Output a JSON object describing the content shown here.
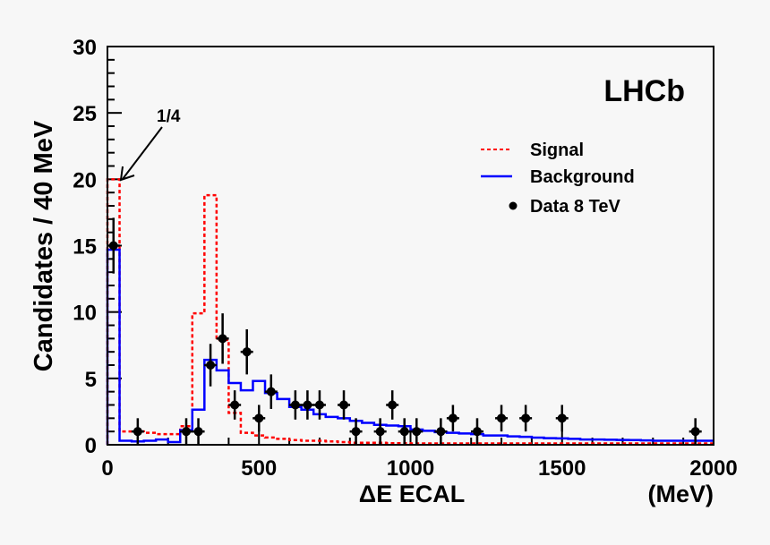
{
  "chart_data": {
    "type": "bar",
    "title": "",
    "xlabel": "ΔE ECAL",
    "xunit": "(MeV)",
    "ylabel": "Candidates / 40 MeV",
    "xlim": [
      0,
      2000
    ],
    "ylim": [
      0,
      30
    ],
    "xticks": [
      "0",
      "500",
      "1000",
      "1500",
      "2000"
    ],
    "yticks": [
      "0",
      "5",
      "10",
      "15",
      "20",
      "25",
      "30"
    ],
    "bin_width": 40,
    "experiment_label": "LHCb",
    "annotation": {
      "text": "1/4",
      "points_to_x": 20,
      "points_to_y": 20
    },
    "legend": {
      "placement": "top-right",
      "entries": [
        "Signal",
        "Background",
        "Data 8 TeV"
      ]
    },
    "colors": {
      "signal": "#ff0000",
      "background": "#0000ff",
      "data": "#000000"
    },
    "series": [
      {
        "name": "Signal",
        "style": "dashed-step",
        "values": [
          20,
          1.0,
          1.0,
          0.9,
          0.8,
          0.8,
          1.4,
          9.9,
          18.8,
          7.9,
          2.4,
          0.9,
          0.7,
          0.55,
          0.45,
          0.35,
          0.3,
          0.3,
          0.25,
          0.2,
          0.15,
          0.15,
          0.15,
          0.12,
          0.12,
          0.1,
          0.1,
          0.1,
          0.1,
          0.1,
          0.1,
          0.1,
          0.1,
          0.1,
          0.1,
          0.1,
          0.1,
          0.1,
          0.1,
          0.1,
          0.1,
          0.1,
          0.1,
          0.1,
          0.1,
          0.1,
          0.1,
          0.1,
          0.1,
          0.1
        ]
      },
      {
        "name": "Background",
        "style": "solid-step",
        "values": [
          14.7,
          0.3,
          0.25,
          0.3,
          0.4,
          0.2,
          1.1,
          2.65,
          6.4,
          5.6,
          4.65,
          4.1,
          4.8,
          3.9,
          3.45,
          2.85,
          2.65,
          2.3,
          2.1,
          2.0,
          1.8,
          1.65,
          1.5,
          1.45,
          1.4,
          1.15,
          1.05,
          0.95,
          0.9,
          0.85,
          0.8,
          0.7,
          0.7,
          0.63,
          0.6,
          0.54,
          0.5,
          0.48,
          0.45,
          0.4,
          0.4,
          0.38,
          0.36,
          0.35,
          0.33,
          0.3,
          0.3,
          0.3,
          0.3,
          0.3
        ]
      },
      {
        "name": "Data 8 TeV",
        "style": "points",
        "x": [
          20,
          100,
          260,
          300,
          340,
          380,
          420,
          460,
          500,
          540,
          620,
          660,
          700,
          780,
          820,
          900,
          940,
          980,
          1020,
          1100,
          1140,
          1220,
          1300,
          1380,
          1500,
          1940
        ],
        "y": [
          15,
          1,
          1,
          1,
          6,
          8,
          3,
          7,
          2,
          4,
          3,
          3,
          3,
          3,
          1,
          1,
          3,
          1,
          1,
          1,
          2,
          1,
          2,
          2,
          2,
          1
        ],
        "yerr": [
          2.1,
          1,
          1,
          1,
          1.6,
          1.9,
          1.1,
          1.7,
          1.0,
          1.3,
          1.1,
          1.1,
          1.1,
          1.1,
          1,
          1,
          1.1,
          1,
          1,
          1,
          1.0,
          1,
          1.0,
          1.0,
          1.0,
          1
        ]
      }
    ]
  }
}
